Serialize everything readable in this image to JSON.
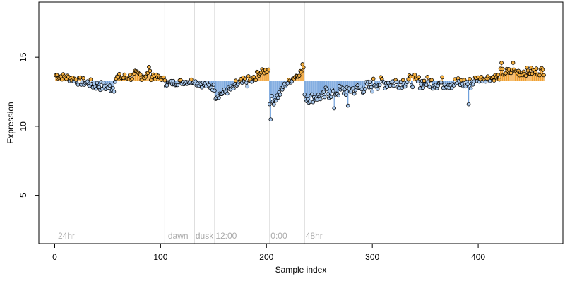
{
  "chart_data": {
    "type": "scatter",
    "title": "",
    "xlabel": "Sample index",
    "ylabel": "Expression",
    "xlim": [
      -15,
      480
    ],
    "ylim": [
      1.5,
      19
    ],
    "x_ticks": [
      0,
      100,
      200,
      300,
      400
    ],
    "y_ticks": [
      5,
      10,
      15
    ],
    "grid": false,
    "legend": "none",
    "colors": {
      "point_edge": "#000000",
      "point_up": "#f5b041",
      "point_down": "#a9c8ec",
      "stem_up": "#f0a030",
      "stem_down": "#6fa0dc",
      "vline": "#d9d9d9",
      "annotation": "#aaaaaa",
      "axis": "#000000"
    },
    "baseline": 13.3,
    "annotations": [
      {
        "x": 3,
        "text": "24hr"
      },
      {
        "x": 107,
        "text": "dawn"
      },
      {
        "x": 133,
        "text": "dusk"
      },
      {
        "x": 152,
        "text": "12:00"
      },
      {
        "x": 204,
        "text": "0:00"
      },
      {
        "x": 237,
        "text": "48hr"
      }
    ],
    "vlines": [
      104,
      132,
      151,
      203,
      236
    ],
    "segments": [
      {
        "x0": 1,
        "x1": 20,
        "y0": 13.7,
        "y1": 13.4,
        "noise": 0.25
      },
      {
        "x0": 21,
        "x1": 35,
        "y0": 13.3,
        "y1": 13.1,
        "noise": 0.3
      },
      {
        "x0": 36,
        "x1": 56,
        "y0": 13.0,
        "y1": 12.8,
        "noise": 0.35
      },
      {
        "x0": 57,
        "x1": 75,
        "y0": 13.5,
        "y1": 13.6,
        "noise": 0.3
      },
      {
        "x0": 76,
        "x1": 95,
        "y0": 13.7,
        "y1": 13.7,
        "noise": 0.35
      },
      {
        "x0": 96,
        "x1": 104,
        "y0": 13.6,
        "y1": 13.4,
        "noise": 0.15
      },
      {
        "x0": 105,
        "x1": 132,
        "y0": 13.1,
        "y1": 13.3,
        "noise": 0.2
      },
      {
        "x0": 133,
        "x1": 151,
        "y0": 13.2,
        "y1": 12.8,
        "noise": 0.25
      },
      {
        "x0": 152,
        "x1": 170,
        "y0": 12.2,
        "y1": 12.8,
        "noise": 0.25
      },
      {
        "x0": 171,
        "x1": 190,
        "y0": 13.0,
        "y1": 13.4,
        "noise": 0.4
      },
      {
        "x0": 191,
        "x1": 202,
        "y0": 13.8,
        "y1": 14.1,
        "noise": 0.2
      },
      {
        "x0": 203,
        "x1": 215,
        "y0": 11.5,
        "y1": 12.6,
        "noise": 0.3
      },
      {
        "x0": 216,
        "x1": 235,
        "y0": 12.9,
        "y1": 14.1,
        "noise": 0.2
      },
      {
        "x0": 236,
        "x1": 255,
        "y0": 12.0,
        "y1": 12.2,
        "noise": 0.35
      },
      {
        "x0": 256,
        "x1": 300,
        "y0": 12.4,
        "y1": 12.9,
        "noise": 0.45
      },
      {
        "x0": 301,
        "x1": 340,
        "y0": 13.1,
        "y1": 13.3,
        "noise": 0.45
      },
      {
        "x0": 341,
        "x1": 395,
        "y0": 13.2,
        "y1": 13.1,
        "noise": 0.45
      },
      {
        "x0": 396,
        "x1": 420,
        "y0": 13.4,
        "y1": 13.6,
        "noise": 0.25
      },
      {
        "x0": 421,
        "x1": 462,
        "y0": 13.9,
        "y1": 14.0,
        "noise": 0.3
      }
    ],
    "special_points": [
      {
        "x": 203,
        "y": 11.6
      },
      {
        "x": 204,
        "y": 10.5
      },
      {
        "x": 205,
        "y": 12.2
      },
      {
        "x": 236,
        "y": 12.3
      },
      {
        "x": 264,
        "y": 11.3
      },
      {
        "x": 277,
        "y": 11.5
      },
      {
        "x": 391,
        "y": 11.6
      },
      {
        "x": 89,
        "y": 14.3
      },
      {
        "x": 422,
        "y": 14.6
      },
      {
        "x": 433,
        "y": 14.6
      },
      {
        "x": 234,
        "y": 14.5
      }
    ]
  }
}
